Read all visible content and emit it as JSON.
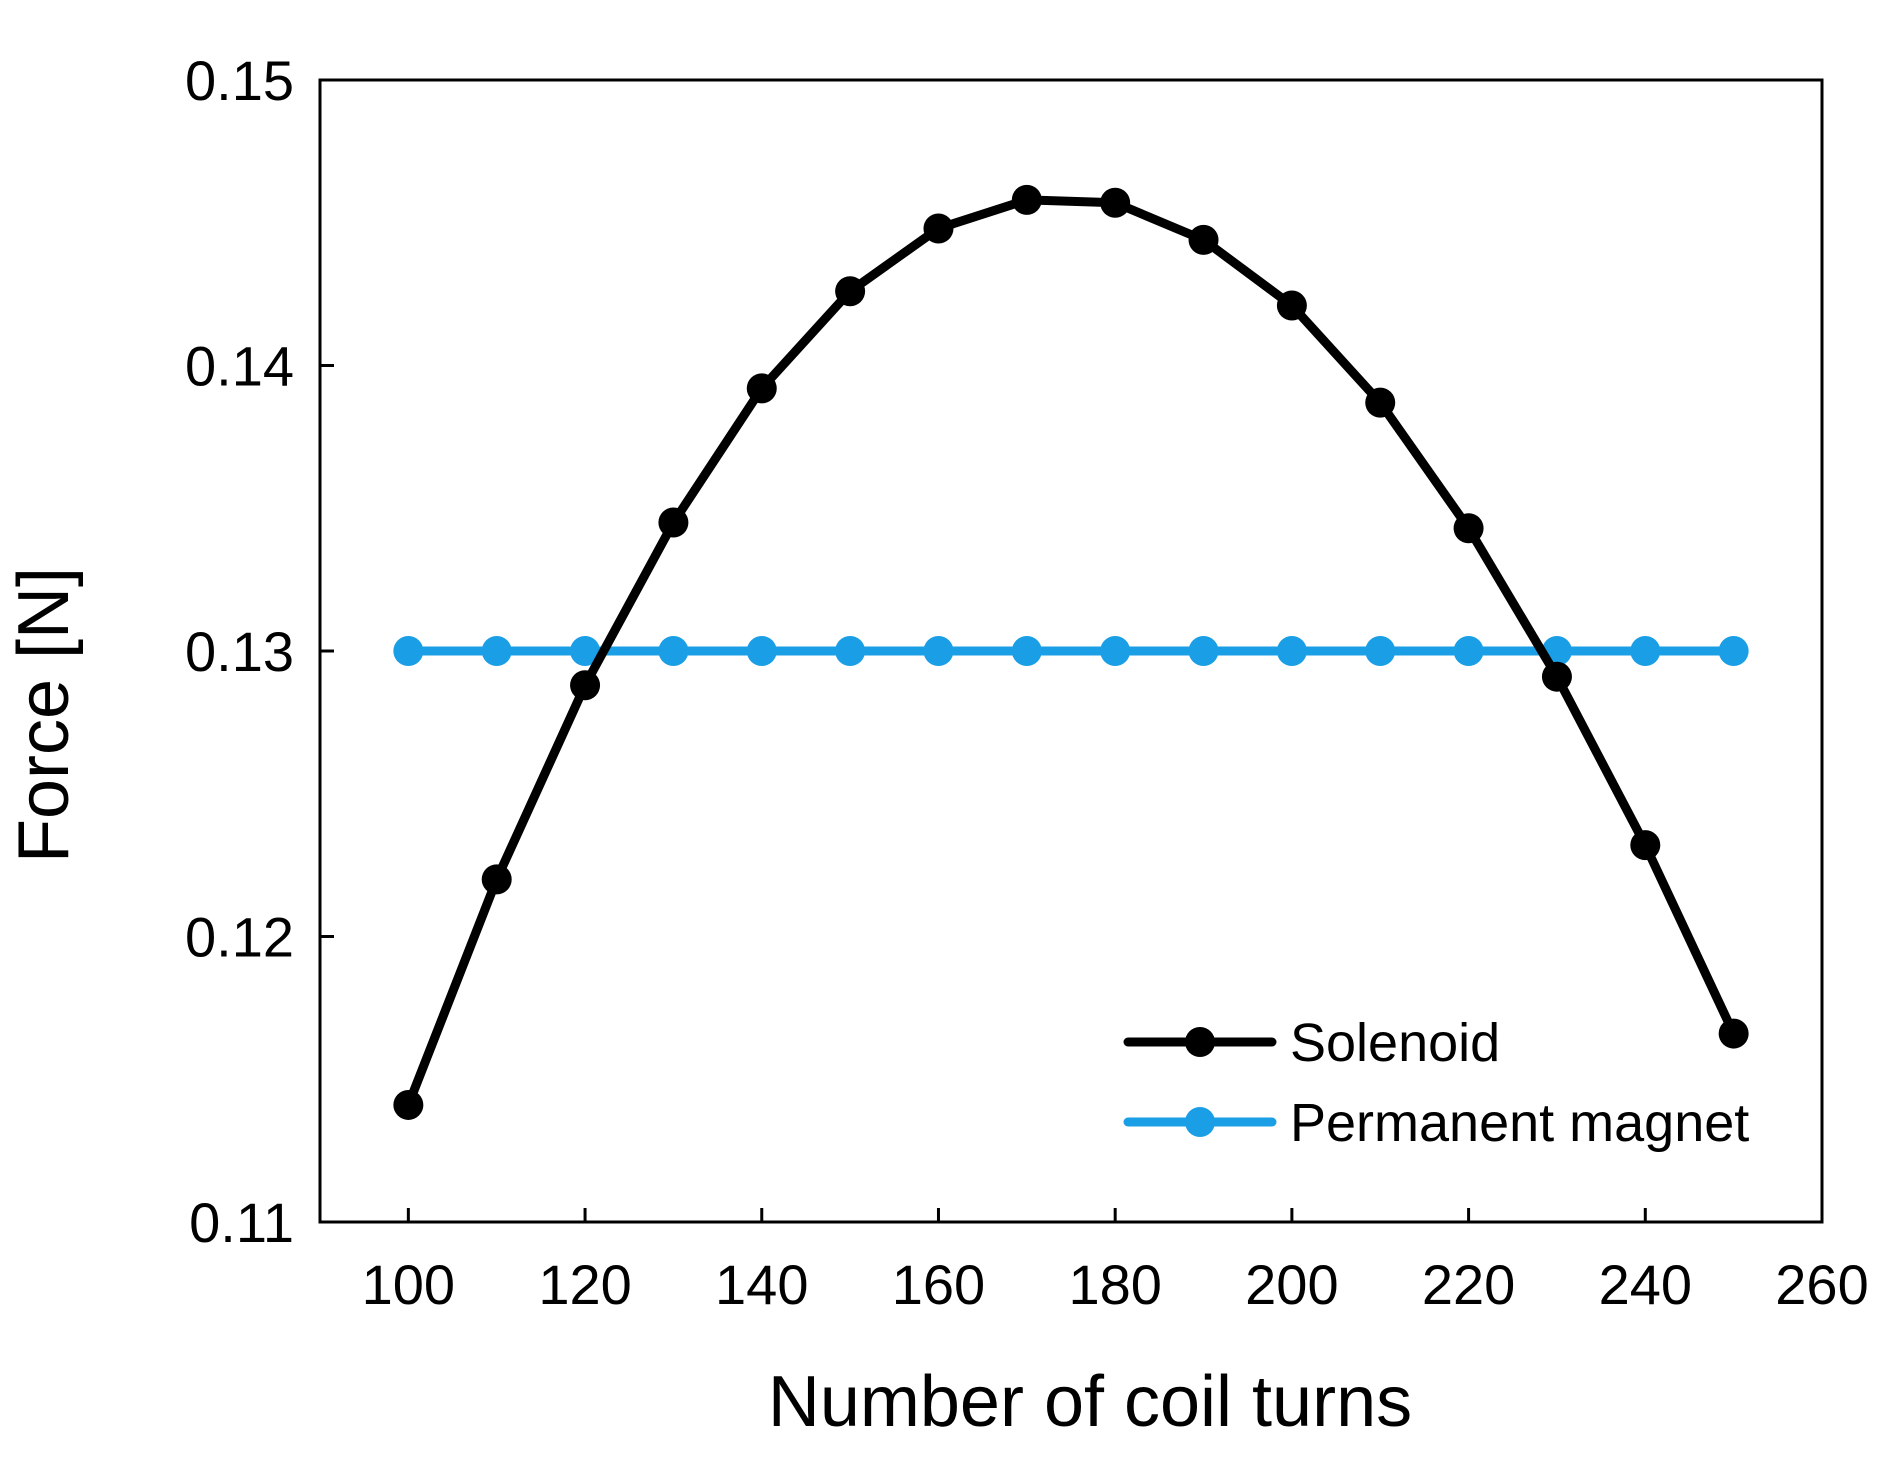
{
  "chart_data": {
    "type": "line",
    "title": "",
    "xlabel": "Number of coil turns",
    "ylabel": "Force [N]",
    "xlim": [
      90,
      260
    ],
    "ylim": [
      0.11,
      0.15
    ],
    "xticks": [
      100,
      120,
      140,
      160,
      180,
      200,
      220,
      240,
      260
    ],
    "yticks": [
      0.11,
      0.12,
      0.13,
      0.14,
      0.15
    ],
    "xtick_labels": [
      "100",
      "120",
      "140",
      "160",
      "180",
      "200",
      "220",
      "240",
      "260"
    ],
    "ytick_labels": [
      "0.11",
      "0.12",
      "0.13",
      "0.14",
      "0.15"
    ],
    "grid": false,
    "legend_position": "bottom-right",
    "x": [
      100,
      110,
      120,
      130,
      140,
      150,
      160,
      170,
      180,
      190,
      200,
      210,
      220,
      230,
      240,
      250
    ],
    "series": [
      {
        "name": "Solenoid",
        "color": "#000000",
        "values": [
          0.1141,
          0.122,
          0.1288,
          0.1345,
          0.1392,
          0.1426,
          0.1448,
          0.1458,
          0.1457,
          0.1444,
          0.1421,
          0.1387,
          0.1343,
          0.1291,
          0.1232,
          0.1166
        ]
      },
      {
        "name": "Permanent magnet",
        "color": "#1a9ee6",
        "values": [
          0.13,
          0.13,
          0.13,
          0.13,
          0.13,
          0.13,
          0.13,
          0.13,
          0.13,
          0.13,
          0.13,
          0.13,
          0.13,
          0.13,
          0.13,
          0.13
        ]
      }
    ]
  }
}
